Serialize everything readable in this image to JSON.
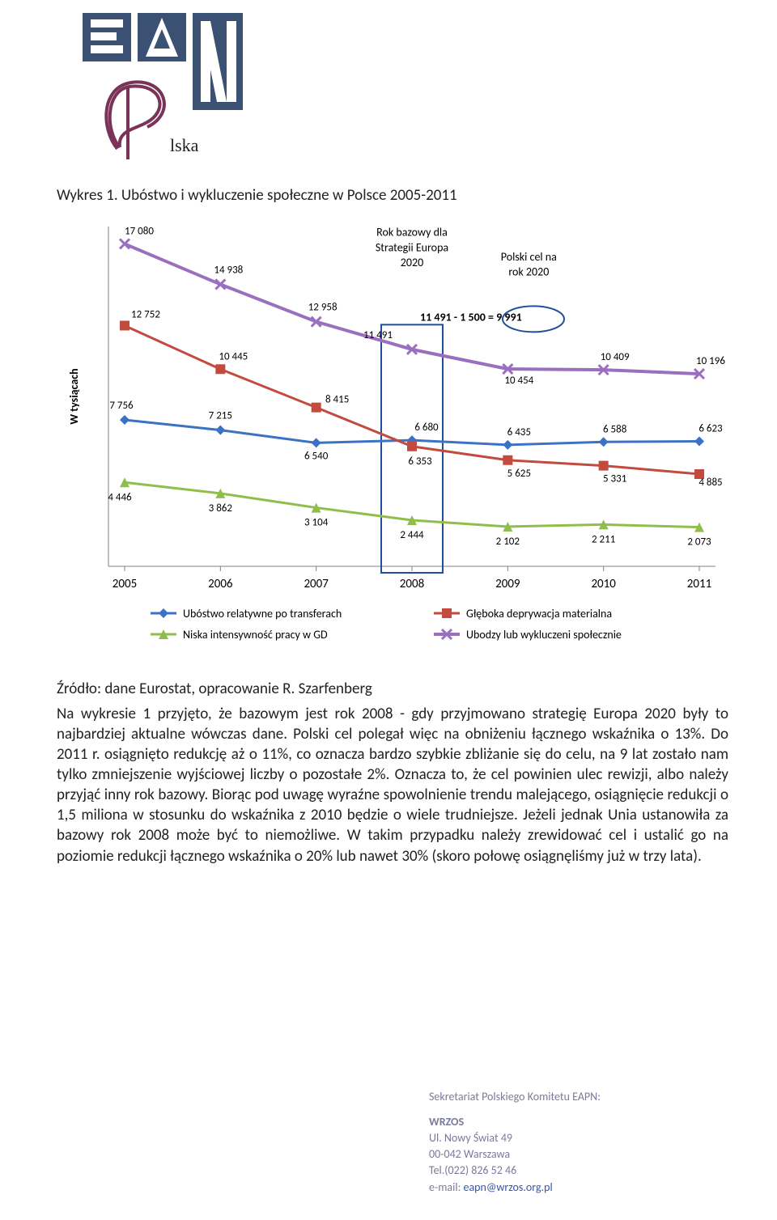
{
  "logo": {
    "letter_bg": "#3a5173",
    "letter_fg": "#ffffff",
    "scribble": "#7a3257",
    "lska_text": "lska"
  },
  "figure_title": "Wykres 1. Ubóstwo i wykluczenie społeczne w Polsce 2005-2011",
  "source_line": "Źródło: dane Eurostat, opracowanie R. Szarfenberg",
  "paragraph": "Na wykresie 1 przyjęto, że bazowym jest rok 2008 - gdy przyjmowano strategię Europa 2020 były to najbardziej aktualne wówczas dane. Polski cel polegał więc na obniżeniu łącznego wskaźnika o 13%. Do 2011 r. osiągnięto redukcję aż o 11%, co oznacza bardzo szybkie zbliżanie się do celu, na 9 lat zostało nam tylko zmniejszenie wyjściowej liczby o pozostałe 2%. Oznacza to, że cel powinien ulec rewizji, albo należy przyjąć inny rok bazowy. Biorąc pod uwagę wyraźne spowolnienie trendu malejącego, osiągnięcie redukcji o 1,5 miliona w stosunku do wskaźnika z 2010 będzie o wiele trudniejsze. Jeżeli jednak Unia ustanowiła za bazowy rok 2008 może być to niemożliwe. W takim przypadku należy zrewidować cel i ustalić go na poziomie redukcji łącznego wskaźnika o 20% lub nawet 30% (skoro połowę osiągnęliśmy już w trzy lata).",
  "chart": {
    "type": "line",
    "ylabel": "W tysiącach",
    "ylabel_fontsize": 14,
    "years": [
      "2005",
      "2006",
      "2007",
      "2008",
      "2009",
      "2010",
      "2011"
    ],
    "x_font": 15,
    "data_label_font": 13,
    "ylim_min": 0,
    "ylim_max": 18000,
    "plot_bg": "#ffffff",
    "axis_color": "#808080",
    "top_text1": "Rok bazowy dla",
    "top_text2": "Strategii Europa",
    "top_text3": "2020",
    "top_text4": "Polski cel na",
    "top_text5": "rok 2020",
    "formula": "11 491 - 1 500 = 9 991",
    "highlight_box_color": "#1f4e9b",
    "highlight_box_width": 2,
    "circle_color": "#1f4e9b",
    "series": [
      {
        "name": "Ubóstwo relatywne po transferach",
        "color": "#3b72c4",
        "marker": "diamond",
        "width": 3,
        "values": [
          7756,
          7215,
          6540,
          6680,
          6435,
          6588,
          6623
        ],
        "labels": [
          "7 756",
          "7 215",
          "6 540",
          "6 680",
          "6 435",
          "6 588",
          "6 623"
        ]
      },
      {
        "name": "Głęboka deprywacja materialna",
        "color": "#c24a3f",
        "marker": "square",
        "width": 3,
        "values": [
          12752,
          10445,
          8415,
          6353,
          5625,
          5331,
          4885
        ],
        "labels": [
          "12 752",
          "10 445",
          "8 415",
          "6 353",
          "5 625",
          "5 331",
          "4 885"
        ]
      },
      {
        "name": "Niska intensywność pracy w GD",
        "color": "#8fbf4a",
        "marker": "triangle",
        "width": 3,
        "values": [
          4446,
          3862,
          3104,
          2444,
          2102,
          2211,
          2073
        ],
        "labels": [
          "4 446",
          "3 862",
          "3 104",
          "2 444",
          "2 102",
          "2 211",
          "2 073"
        ]
      },
      {
        "name": "Ubodzy lub wykluczeni społecznie",
        "color": "#9a6fc0",
        "marker": "x",
        "width": 4,
        "values": [
          17080,
          14938,
          12958,
          11491,
          10454,
          10409,
          10196
        ],
        "labels": [
          "17 080",
          "14 938",
          "12 958",
          "11 491",
          "10 454",
          "10 409",
          "10 196"
        ]
      }
    ],
    "legend_font": 14,
    "legend_marker_size": 10
  },
  "footer": {
    "heading": "Sekretariat Polskiego Komitetu EAPN:",
    "org": "WRZOS",
    "addr1": "Ul. Nowy Świat 49",
    "addr2": "00-042 Warszawa",
    "tel": "Tel.(022) 826 52 46",
    "email_label": "e-mail: ",
    "email_value": "eapn@wrzos.org.pl",
    "color": "#8a8aa8"
  }
}
